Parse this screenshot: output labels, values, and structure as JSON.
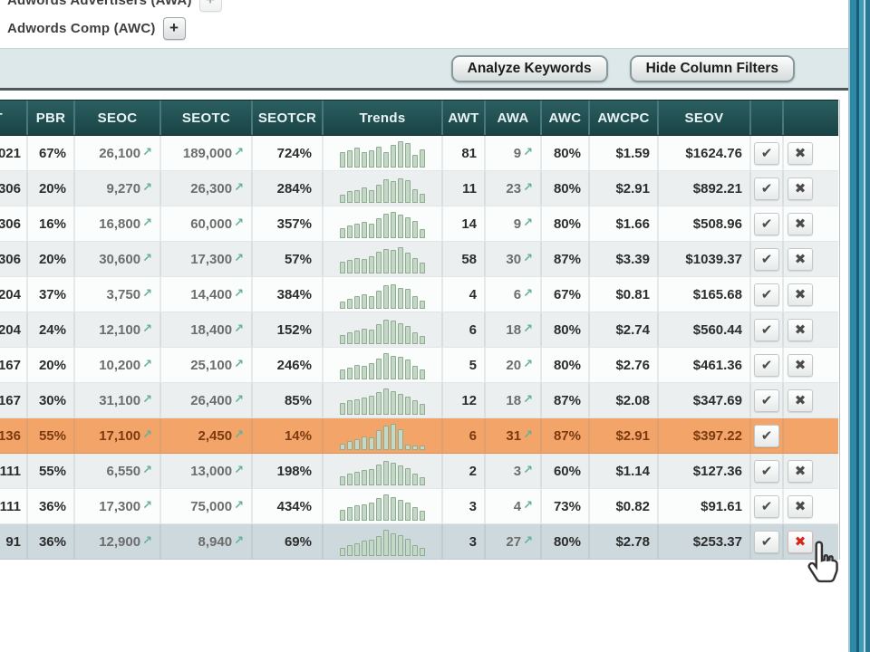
{
  "filters": {
    "awa_label": "Adwords Advertisers (AWA)",
    "awc_label": "Adwords Comp (AWC)",
    "plus_symbol": "+"
  },
  "toolbar": {
    "analyze_button": "Analyze Keywords",
    "hide_filters_button": "Hide Column Filters"
  },
  "icons": {
    "check": "✔",
    "remove": "✖",
    "up_arrow": "↗"
  },
  "colors": {
    "header_teal": "#1d4d50",
    "window_border_teal": "#2f89a6",
    "highlight_orange": "#f3a569",
    "highlight_selected": "#cdd9dd",
    "trend_bar": "#c3d9c6",
    "remove_hover_red": "#d6281a"
  },
  "table": {
    "headers": {
      "seot": "EOT",
      "pbr": "PBR",
      "seoc": "SEOC",
      "seotc": "SEOTC",
      "seotcr": "SEOTCR",
      "trends": "Trends",
      "awt": "AWT",
      "awa": "AWA",
      "awc": "AWC",
      "awcpc": "AWCPC",
      "seov": "SEOV"
    },
    "rows": [
      {
        "seot": "021",
        "pbr": "67%",
        "seoc": "26,100",
        "seotc": "189,000",
        "seotcr": "724%",
        "trend": [
          55,
          62,
          72,
          58,
          64,
          78,
          58,
          84,
          95,
          90,
          48,
          66
        ],
        "awt": "81",
        "awa": "9",
        "awc": "80%",
        "awcpc": "$1.59",
        "seov": "$1624.76",
        "highlight": "none",
        "has_remove": true,
        "remove_red": false
      },
      {
        "seot": "306",
        "pbr": "20%",
        "seoc": "9,270",
        "seotc": "26,300",
        "seotcr": "284%",
        "trend": [
          30,
          42,
          48,
          55,
          46,
          68,
          85,
          80,
          90,
          83,
          50,
          32
        ],
        "awt": "11",
        "awa": "23",
        "awc": "80%",
        "awcpc": "$2.91",
        "seov": "$892.21",
        "highlight": "none",
        "has_remove": true,
        "remove_red": false
      },
      {
        "seot": "306",
        "pbr": "16%",
        "seoc": "16,800",
        "seotc": "60,000",
        "seotcr": "357%",
        "trend": [
          38,
          48,
          54,
          60,
          52,
          74,
          90,
          95,
          85,
          78,
          64,
          34
        ],
        "awt": "14",
        "awa": "9",
        "awc": "80%",
        "awcpc": "$1.66",
        "seov": "$508.96",
        "highlight": "none",
        "has_remove": true,
        "remove_red": false
      },
      {
        "seot": "306",
        "pbr": "20%",
        "seoc": "30,600",
        "seotc": "17,300",
        "seotcr": "57%",
        "trend": [
          42,
          50,
          58,
          54,
          64,
          80,
          90,
          85,
          95,
          78,
          58,
          40
        ],
        "awt": "58",
        "awa": "30",
        "awc": "87%",
        "awcpc": "$3.39",
        "seov": "$1039.37",
        "highlight": "none",
        "has_remove": true,
        "remove_red": false
      },
      {
        "seot": "204",
        "pbr": "37%",
        "seoc": "3,750",
        "seotc": "14,400",
        "seotcr": "384%",
        "trend": [
          28,
          38,
          45,
          54,
          48,
          68,
          85,
          90,
          78,
          72,
          48,
          30
        ],
        "awt": "4",
        "awa": "6",
        "awc": "67%",
        "awcpc": "$0.81",
        "seov": "$165.68",
        "highlight": "none",
        "has_remove": true,
        "remove_red": false
      },
      {
        "seot": "204",
        "pbr": "24%",
        "seoc": "12,100",
        "seotc": "18,400",
        "seotcr": "152%",
        "trend": [
          34,
          44,
          50,
          58,
          54,
          74,
          90,
          85,
          78,
          68,
          44,
          30
        ],
        "awt": "6",
        "awa": "18",
        "awc": "80%",
        "awcpc": "$2.74",
        "seov": "$560.44",
        "highlight": "none",
        "has_remove": true,
        "remove_red": false
      },
      {
        "seot": "167",
        "pbr": "20%",
        "seoc": "10,200",
        "seotc": "25,100",
        "seotcr": "246%",
        "trend": [
          38,
          44,
          54,
          50,
          60,
          78,
          95,
          88,
          84,
          74,
          50,
          36
        ],
        "awt": "5",
        "awa": "20",
        "awc": "80%",
        "awcpc": "$2.76",
        "seov": "$461.36",
        "highlight": "none",
        "has_remove": true,
        "remove_red": false
      },
      {
        "seot": "167",
        "pbr": "30%",
        "seoc": "31,100",
        "seotc": "26,400",
        "seotcr": "85%",
        "trend": [
          44,
          54,
          58,
          64,
          70,
          84,
          95,
          88,
          78,
          68,
          54,
          40
        ],
        "awt": "12",
        "awa": "18",
        "awc": "87%",
        "awcpc": "$2.08",
        "seov": "$347.69",
        "highlight": "none",
        "has_remove": true,
        "remove_red": false
      },
      {
        "seot": "136",
        "pbr": "55%",
        "seoc": "17,100",
        "seotc": "2,450",
        "seotcr": "14%",
        "trend": [
          24,
          34,
          40,
          50,
          45,
          72,
          90,
          95,
          78,
          20,
          16,
          16
        ],
        "awt": "6",
        "awa": "31",
        "awc": "87%",
        "awcpc": "$2.91",
        "seov": "$397.22",
        "highlight": "orange",
        "has_remove": false,
        "remove_red": false
      },
      {
        "seot": "111",
        "pbr": "55%",
        "seoc": "6,550",
        "seotc": "13,000",
        "seotcr": "198%",
        "trend": [
          34,
          44,
          50,
          55,
          60,
          78,
          90,
          84,
          74,
          64,
          44,
          30
        ],
        "awt": "2",
        "awa": "3",
        "awc": "60%",
        "awcpc": "$1.14",
        "seov": "$127.36",
        "highlight": "none",
        "has_remove": true,
        "remove_red": false
      },
      {
        "seot": "111",
        "pbr": "36%",
        "seoc": "17,300",
        "seotc": "75,000",
        "seotcr": "434%",
        "trend": [
          40,
          50,
          55,
          60,
          66,
          84,
          95,
          88,
          78,
          68,
          50,
          36
        ],
        "awt": "3",
        "awa": "4",
        "awc": "73%",
        "awcpc": "$0.82",
        "seov": "$91.61",
        "highlight": "none",
        "has_remove": true,
        "remove_red": false
      },
      {
        "seot": "91",
        "pbr": "36%",
        "seoc": "12,900",
        "seotc": "8,940",
        "seotcr": "69%",
        "trend": [
          30,
          40,
          46,
          55,
          60,
          74,
          95,
          84,
          78,
          64,
          40,
          30
        ],
        "awt": "3",
        "awa": "27",
        "awc": "80%",
        "awcpc": "$2.78",
        "seov": "$253.37",
        "highlight": "selected",
        "has_remove": true,
        "remove_red": true
      }
    ]
  }
}
